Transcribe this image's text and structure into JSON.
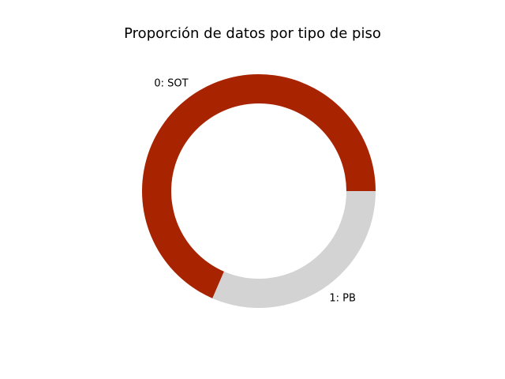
{
  "chart_data": {
    "type": "pie",
    "title": "Proporción de datos por tipo de piso",
    "donut": true,
    "start_angle_deg": 0,
    "direction": "counterclockwise",
    "slices": [
      {
        "label": "0: SOT",
        "value": 68.5,
        "color": "#a82300"
      },
      {
        "label": "1: PB",
        "value": 31.5,
        "color": "#d3d3d3"
      }
    ]
  }
}
